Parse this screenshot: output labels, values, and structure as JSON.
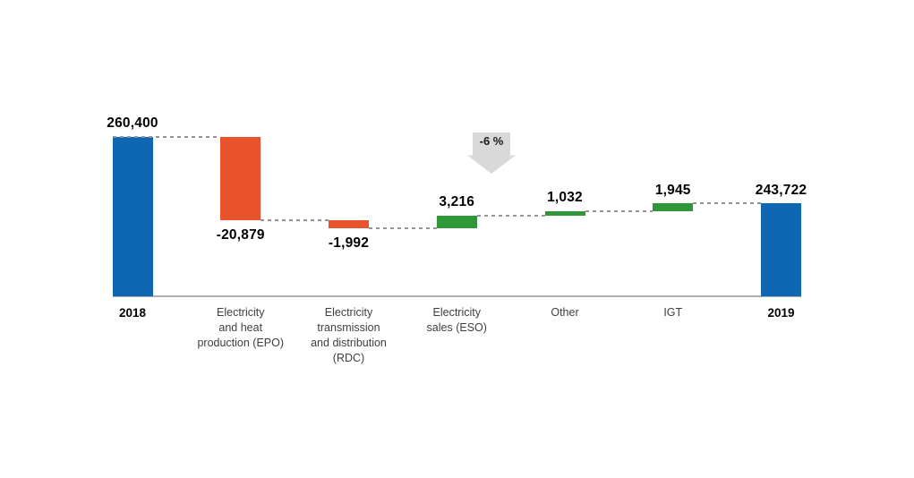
{
  "chart_data": {
    "type": "bar",
    "subtype": "waterfall",
    "title": "",
    "xlabel": "",
    "ylabel": "",
    "legend": null,
    "grid": false,
    "y_axis_visible": false,
    "x_axis_baseline_visible": true,
    "value_axis_min_estimate": 220500,
    "categories": [
      "2018",
      "Electricity and heat production (EPO)",
      "Electricity transmission and distribution (RDC)",
      "Electricity sales (ESO)",
      "Other",
      "IGT",
      "2019"
    ],
    "columns": [
      {
        "label_lines": [
          "2018"
        ],
        "display_value": "260,400",
        "value": 260400,
        "role": "total"
      },
      {
        "label_lines": [
          "Electricity",
          "and heat",
          "production (EPO)"
        ],
        "display_value": "-20,879",
        "value": -20879,
        "role": "decrease"
      },
      {
        "label_lines": [
          "Electricity",
          "transmission",
          "and distribution",
          "(RDC)"
        ],
        "display_value": "-1,992",
        "value": -1992,
        "role": "decrease"
      },
      {
        "label_lines": [
          "Electricity",
          "sales (ESO)"
        ],
        "display_value": "3,216",
        "value": 3216,
        "role": "increase"
      },
      {
        "label_lines": [
          "Other"
        ],
        "display_value": "1,032",
        "value": 1032,
        "role": "increase"
      },
      {
        "label_lines": [
          "IGT"
        ],
        "display_value": "1,945",
        "value": 1945,
        "role": "increase"
      },
      {
        "label_lines": [
          "2019"
        ],
        "display_value": "243,722",
        "value": 243722,
        "role": "total"
      }
    ],
    "annotation": {
      "text": "-6 %",
      "icon": "down-arrow"
    },
    "colors": {
      "total": "#1067B1",
      "decrease": "#E8532C",
      "increase": "#2F9639",
      "arrow": "#D9D9D9",
      "connector": "#949494",
      "axis_line": "#AEAEAE",
      "value_label": "#000000",
      "category_label": "#3F3F3F",
      "background": "#FFFFFF"
    }
  }
}
